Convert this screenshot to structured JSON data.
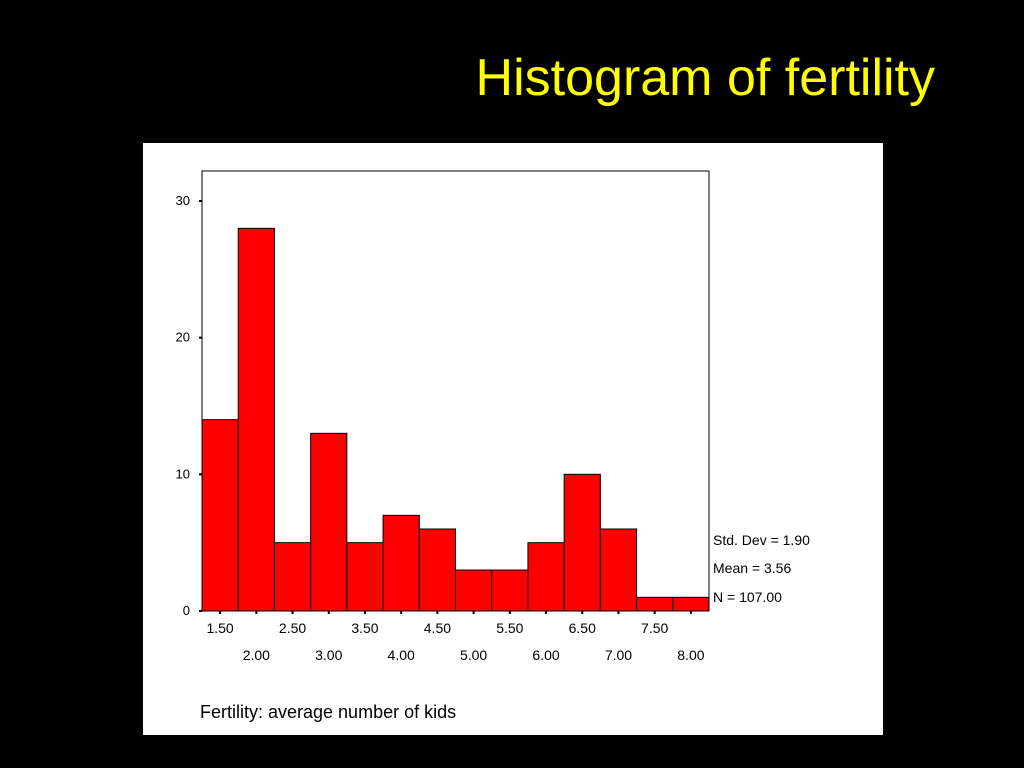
{
  "slide": {
    "title": "Histogram of fertility",
    "title_color": "#ffff00",
    "background": "#000000"
  },
  "chart_data": {
    "type": "bar",
    "title": "Histogram of fertility",
    "xlabel": "Fertility: average number of kids",
    "ylabel": "",
    "bin_start": 1.25,
    "bin_width": 0.5,
    "values": [
      14,
      28,
      5,
      13,
      5,
      7,
      6,
      3,
      3,
      5,
      10,
      6,
      1,
      1
    ],
    "x_ticks_top": [
      "1.50",
      "2.50",
      "3.50",
      "4.50",
      "5.50",
      "6.50",
      "7.50"
    ],
    "x_ticks_bottom": [
      "2.00",
      "3.00",
      "4.00",
      "5.00",
      "6.00",
      "7.00",
      "8.00"
    ],
    "y_ticks": [
      "0",
      "10",
      "20",
      "30"
    ],
    "ylim": [
      0,
      30
    ],
    "grid": false,
    "bar_color": "#ff0000",
    "stats": {
      "std_dev": "Std. Dev = 1.90",
      "mean": "Mean = 3.56",
      "n": "N = 107.00"
    },
    "stats_placement": "right"
  }
}
